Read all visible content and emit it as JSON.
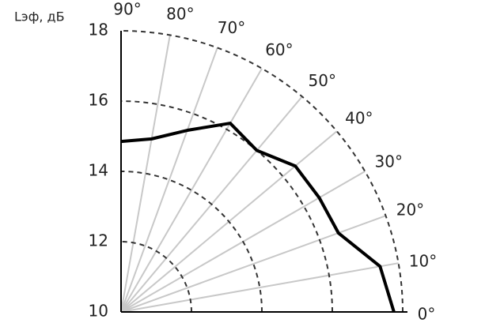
{
  "chart_data": {
    "type": "polar",
    "ylabel": "Lэф, дБ",
    "x": [
      0,
      10,
      20,
      30,
      40,
      50,
      60,
      70,
      80,
      90
    ],
    "values": [
      17.75,
      17.47,
      16.57,
      16.5,
      16.46,
      16.0,
      16.2,
      15.5,
      15.0,
      14.85
    ],
    "color": "#000000",
    "ylim": [
      10,
      18
    ],
    "yticks": [
      10,
      12,
      14,
      16,
      18
    ],
    "xlim": [
      0,
      90
    ],
    "xticks": [
      {
        "value": 0,
        "label": "0°"
      },
      {
        "value": 10,
        "label": "10°"
      },
      {
        "value": 20,
        "label": "20°"
      },
      {
        "value": 30,
        "label": "30°"
      },
      {
        "value": 40,
        "label": "40°"
      },
      {
        "value": 50,
        "label": "50°"
      },
      {
        "value": 60,
        "label": "60°"
      },
      {
        "value": 70,
        "label": "70°"
      },
      {
        "value": 80,
        "label": "80°"
      },
      {
        "value": 90,
        "label": "90°"
      }
    ],
    "grid": true
  }
}
